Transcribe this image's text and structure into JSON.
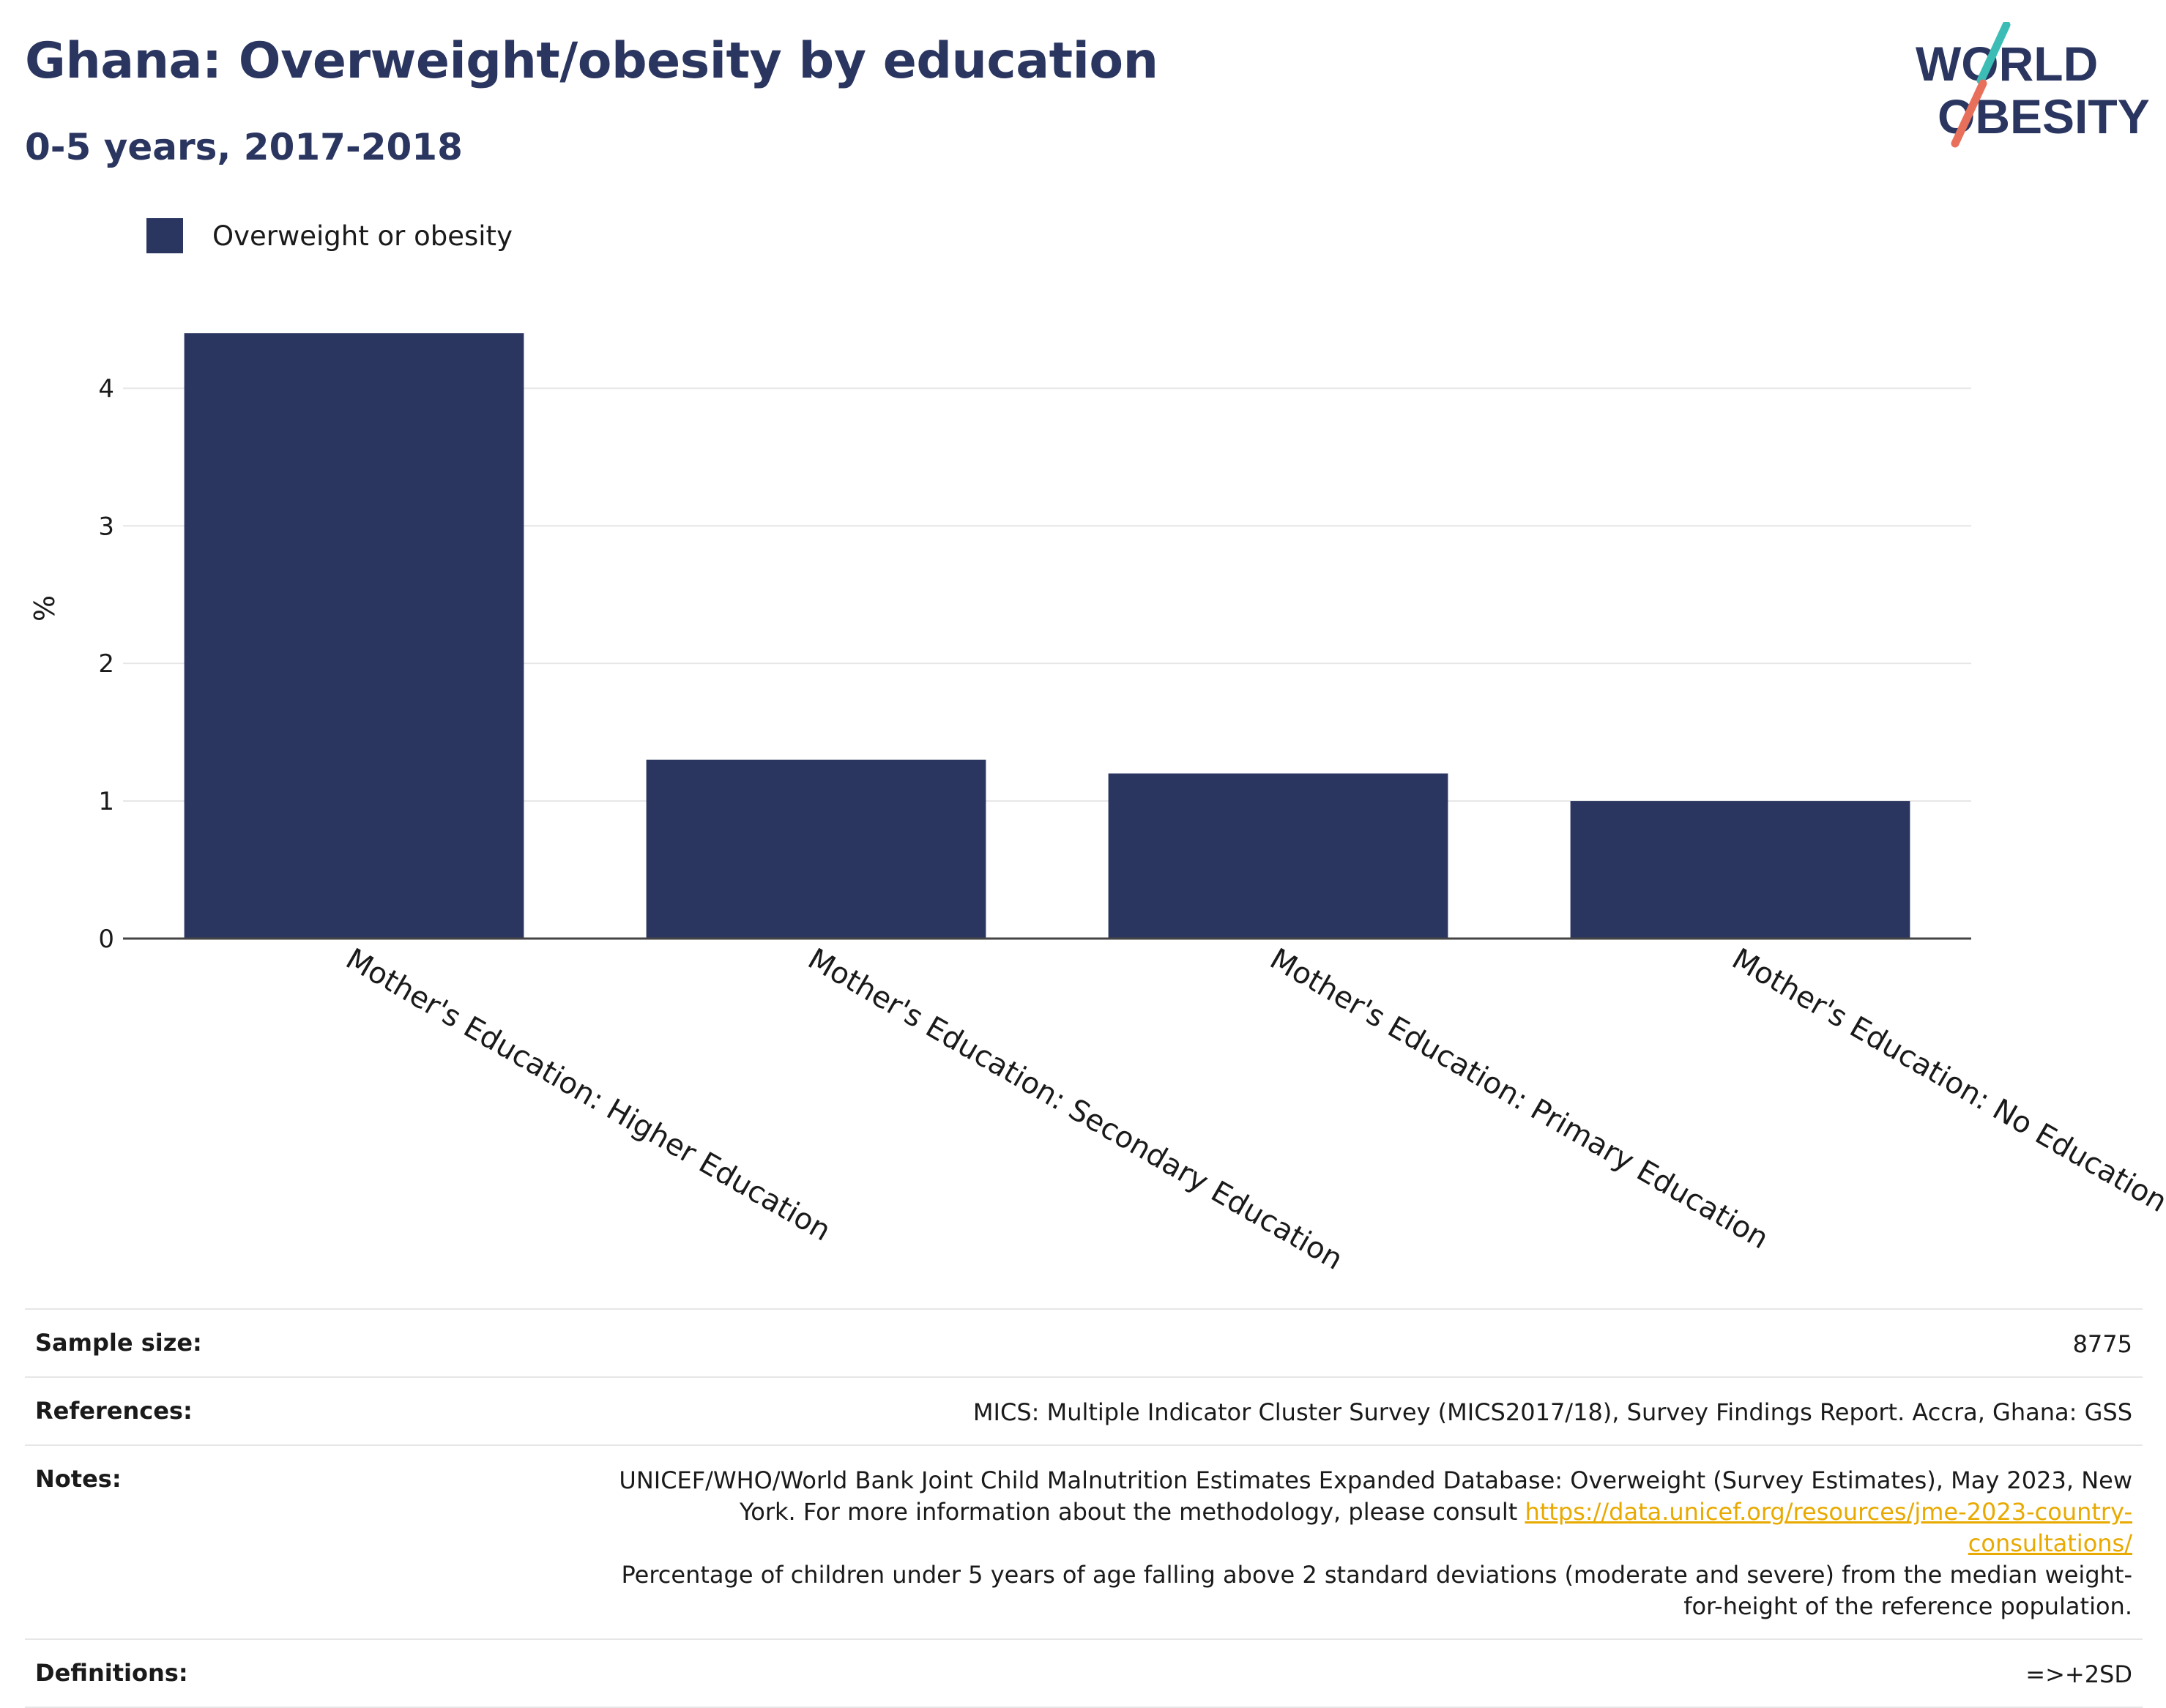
{
  "header": {
    "title": "Ghana: Overweight/obesity by education",
    "subtitle": "0-5 years, 2017-2018"
  },
  "logo": {
    "line1": "WORLD",
    "line2": "OBESITY"
  },
  "legend": {
    "label": "Overweight or obesity",
    "color": "#2a3660"
  },
  "chart_data": {
    "type": "bar",
    "categories": [
      "Mother's Education: Higher Education",
      "Mother's Education: Secondary Education",
      "Mother's Education: Primary Education",
      "Mother's Education: No Education"
    ],
    "series": [
      {
        "name": "Overweight or obesity",
        "values": [
          4.4,
          1.3,
          1.2,
          1.0
        ],
        "color": "#2a3660"
      }
    ],
    "xlabel": "",
    "ylabel": "%",
    "ylim": [
      0,
      4.8
    ],
    "yticks": [
      0,
      1,
      2,
      3,
      4
    ],
    "grid": true,
    "legend_position": "top-left"
  },
  "meta": {
    "sample_size": {
      "key": "Sample size:",
      "value": "8775"
    },
    "references": {
      "key": "References:",
      "value": "MICS: Multiple Indicator Cluster Survey (MICS2017/18), Survey Findings Report. Accra, Ghana: GSS"
    },
    "notes": {
      "key": "Notes:",
      "text1": "UNICEF/WHO/World Bank Joint Child Malnutrition Estimates Expanded Database: Overweight (Survey Estimates), May 2023, New York. For more information about the methodology, please consult",
      "link": "https://data.unicef.org/resources/jme-2023-country-consultations/",
      "text2": "Percentage of children under 5 years of age falling above 2 standard deviations (moderate and severe) from the median weight-for-height of the reference population."
    },
    "definitions": {
      "key": "Definitions:",
      "value": "=>+2SD"
    }
  }
}
